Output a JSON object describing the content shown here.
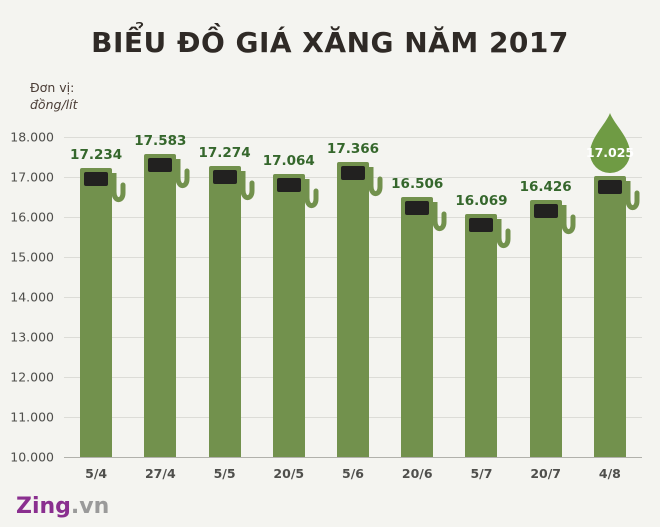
{
  "title": "BIỂU ĐỒ GIÁ XĂNG NĂM 2017",
  "unit": {
    "label": "Đơn vị:",
    "value": "đồng/lít"
  },
  "chart_data": {
    "type": "bar",
    "title": "BIỂU ĐỒ GIÁ XĂNG NĂM 2017",
    "xlabel": "",
    "ylabel": "đồng/lít",
    "categories": [
      "5/4",
      "27/4",
      "5/5",
      "20/5",
      "5/6",
      "20/6",
      "5/7",
      "20/7",
      "4/8"
    ],
    "values": [
      17234,
      17583,
      17274,
      17064,
      17366,
      16506,
      16069,
      16426,
      17025
    ],
    "labels": [
      "17.234",
      "17.583",
      "17.274",
      "17.064",
      "17.366",
      "16.506",
      "16.069",
      "16.426",
      "17.025"
    ],
    "ylim": [
      10000,
      18000
    ],
    "yticks": [
      "18.000",
      "17.000",
      "16.000",
      "15.000",
      "14.000",
      "13.000",
      "12.000",
      "11.000",
      "10.000"
    ],
    "grid": true,
    "legend": "none",
    "highlight_index": 8,
    "highlight_style": "droplet"
  },
  "colors": {
    "background": "#f4f4f0",
    "bar": "#72914d",
    "pump_display": "#222120",
    "droplet": "#6f9b44",
    "value_label": "#35672c",
    "title_text": "#2f2a26",
    "logo_purple": "#8a2f8f",
    "logo_gray": "#9a9a9a"
  },
  "footer": {
    "logo_main": "Zing",
    "logo_suffix": ".vn"
  }
}
